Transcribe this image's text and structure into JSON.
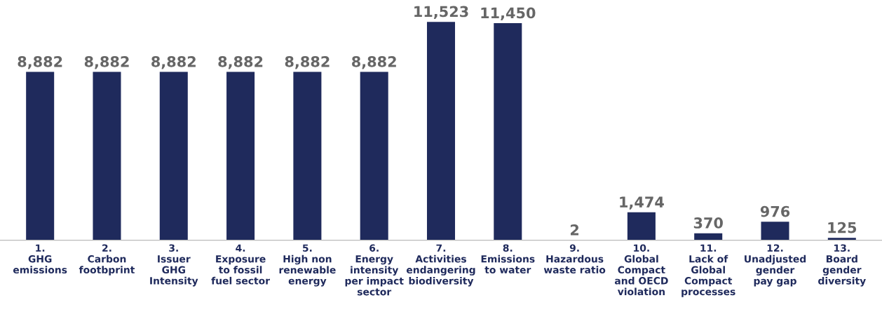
{
  "chart_data": {
    "type": "bar",
    "categories": [
      "1.\nGHG\nemissions",
      "2.\nCarbon\nfootbprint",
      "3.\nIssuer\nGHG\nIntensity",
      "4.\nExposure\nto fossil\nfuel sector",
      "5.\nHigh non\nrenewable\nenergy",
      "6.\nEnergy\nintensity\nper impact\nsector",
      "7.\nActivities\nendangering\nbiodiversity",
      "8.\nEmissions\nto water",
      "9.\nHazardous\nwaste ratio",
      "10.\nGlobal\nCompact\nand OECD\nviolation",
      "11.\nLack of\nGlobal\nCompact\nprocesses",
      "12.\nUnadjusted\ngender\npay gap",
      "13.\nBoard\ngender\ndiversity"
    ],
    "values": [
      8882,
      8882,
      8882,
      8882,
      8882,
      8882,
      11523,
      11450,
      2,
      1474,
      370,
      976,
      125
    ],
    "value_labels": [
      "8,882",
      "8,882",
      "8,882",
      "8,882",
      "8,882",
      "8,882",
      "11,523",
      "11,450",
      "2",
      "1,474",
      "370",
      "976",
      "125"
    ],
    "color": "#1f2a5c",
    "grid": false,
    "tick_labels": "x"
  }
}
